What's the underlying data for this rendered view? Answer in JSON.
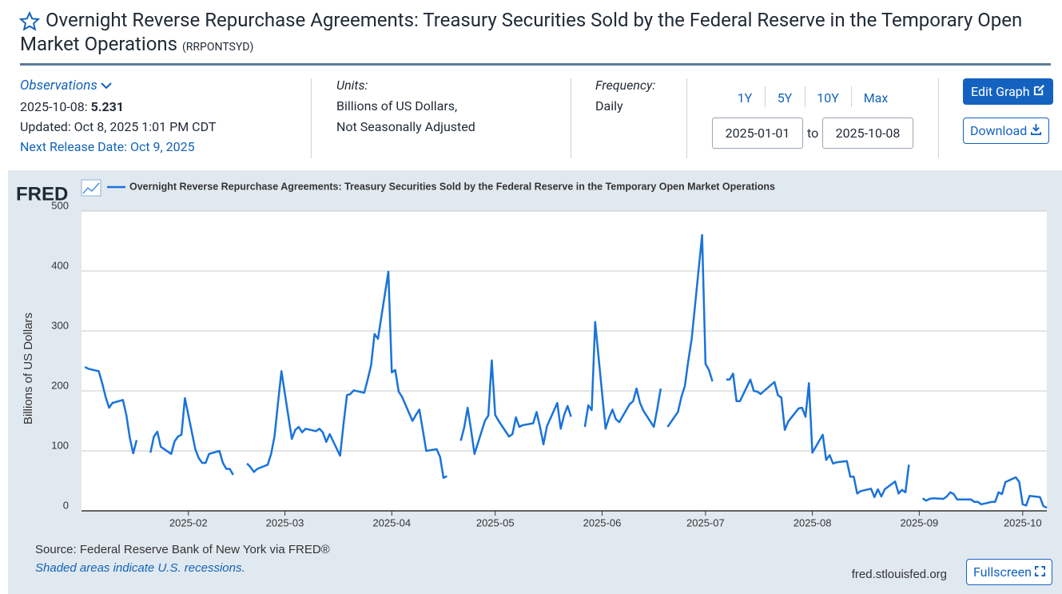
{
  "header": {
    "title": "Overnight Reverse Repurchase Agreements: Treasury Securities Sold by the Federal Reserve in the Temporary Open Market Operations",
    "series_id": "(RRPONTSYD)"
  },
  "observations": {
    "label": "Observations",
    "date": "2025-10-08:",
    "value": "5.231",
    "updated": "Updated: Oct 8, 2025 1:01 PM CDT",
    "next_release": "Next Release Date: Oct 9, 2025"
  },
  "units": {
    "label": "Units:",
    "lines": [
      "Billions of US Dollars,",
      "Not Seasonally Adjusted"
    ]
  },
  "frequency": {
    "label": "Frequency:",
    "value": "Daily"
  },
  "ranges": [
    "1Y",
    "5Y",
    "10Y",
    "Max"
  ],
  "date_range": {
    "start": "2025-01-01",
    "separator": "to",
    "end": "2025-10-08"
  },
  "buttons": {
    "edit": "Edit Graph",
    "download": "Download",
    "fullscreen": "Fullscreen"
  },
  "footer_url": "fred.stlouisfed.org",
  "chart_data": {
    "type": "line",
    "logo": "FRED",
    "ylabel": "Billions of US Dollars",
    "source": "Source: Federal Reserve Bank of New York via FRED®",
    "note": "Shaded areas indicate U.S. recessions.",
    "grid": true,
    "xlim": [
      "2025-01-01",
      "2025-10-08"
    ],
    "ylim": [
      0,
      500
    ],
    "yticks": [
      0,
      100,
      200,
      300,
      400,
      500
    ],
    "xticks": [
      {
        "value": "2025-02-01",
        "label": "2025-02"
      },
      {
        "value": "2025-03-01",
        "label": "2025-03"
      },
      {
        "value": "2025-04-01",
        "label": "2025-04"
      },
      {
        "value": "2025-05-01",
        "label": "2025-05"
      },
      {
        "value": "2025-06-01",
        "label": "2025-06"
      },
      {
        "value": "2025-07-01",
        "label": "2025-07"
      },
      {
        "value": "2025-08-01",
        "label": "2025-08"
      },
      {
        "value": "2025-09-01",
        "label": "2025-09"
      },
      {
        "value": "2025-10-01",
        "label": "2025-10"
      }
    ],
    "x": [
      "2025-01-02",
      "2025-01-03",
      "2025-01-06",
      "2025-01-07",
      "2025-01-08",
      "2025-01-09",
      "2025-01-10",
      "2025-01-13",
      "2025-01-14",
      "2025-01-15",
      "2025-01-16",
      "2025-01-17",
      "2025-01-20",
      "2025-01-21",
      "2025-01-22",
      "2025-01-23",
      "2025-01-24",
      "2025-01-27",
      "2025-01-28",
      "2025-01-29",
      "2025-01-30",
      "2025-01-31",
      "2025-02-03",
      "2025-02-04",
      "2025-02-05",
      "2025-02-06",
      "2025-02-07",
      "2025-02-10",
      "2025-02-11",
      "2025-02-12",
      "2025-02-13",
      "2025-02-14",
      "2025-02-17",
      "2025-02-18",
      "2025-02-19",
      "2025-02-20",
      "2025-02-21",
      "2025-02-24",
      "2025-02-25",
      "2025-02-26",
      "2025-02-27",
      "2025-02-28",
      "2025-03-03",
      "2025-03-04",
      "2025-03-05",
      "2025-03-06",
      "2025-03-07",
      "2025-03-10",
      "2025-03-11",
      "2025-03-12",
      "2025-03-13",
      "2025-03-14",
      "2025-03-17",
      "2025-03-18",
      "2025-03-19",
      "2025-03-20",
      "2025-03-21",
      "2025-03-24",
      "2025-03-25",
      "2025-03-26",
      "2025-03-27",
      "2025-03-28",
      "2025-03-31",
      "2025-04-01",
      "2025-04-02",
      "2025-04-03",
      "2025-04-04",
      "2025-04-07",
      "2025-04-08",
      "2025-04-09",
      "2025-04-10",
      "2025-04-11",
      "2025-04-14",
      "2025-04-15",
      "2025-04-16",
      "2025-04-17",
      "2025-04-18",
      "2025-04-21",
      "2025-04-22",
      "2025-04-23",
      "2025-04-24",
      "2025-04-25",
      "2025-04-28",
      "2025-04-29",
      "2025-04-30",
      "2025-05-01",
      "2025-05-02",
      "2025-05-05",
      "2025-05-06",
      "2025-05-07",
      "2025-05-08",
      "2025-05-09",
      "2025-05-12",
      "2025-05-13",
      "2025-05-14",
      "2025-05-15",
      "2025-05-16",
      "2025-05-19",
      "2025-05-20",
      "2025-05-21",
      "2025-05-22",
      "2025-05-23",
      "2025-05-26",
      "2025-05-27",
      "2025-05-28",
      "2025-05-29",
      "2025-05-30",
      "2025-06-02",
      "2025-06-03",
      "2025-06-04",
      "2025-06-05",
      "2025-06-06",
      "2025-06-09",
      "2025-06-10",
      "2025-06-11",
      "2025-06-12",
      "2025-06-13",
      "2025-06-16",
      "2025-06-17",
      "2025-06-18",
      "2025-06-19",
      "2025-06-20",
      "2025-06-23",
      "2025-06-24",
      "2025-06-25",
      "2025-06-26",
      "2025-06-27",
      "2025-06-30",
      "2025-07-01",
      "2025-07-02",
      "2025-07-03",
      "2025-07-04",
      "2025-07-07",
      "2025-07-08",
      "2025-07-09",
      "2025-07-10",
      "2025-07-11",
      "2025-07-14",
      "2025-07-15",
      "2025-07-16",
      "2025-07-17",
      "2025-07-18",
      "2025-07-21",
      "2025-07-22",
      "2025-07-23",
      "2025-07-24",
      "2025-07-25",
      "2025-07-28",
      "2025-07-29",
      "2025-07-30",
      "2025-07-31",
      "2025-08-01",
      "2025-08-04",
      "2025-08-05",
      "2025-08-06",
      "2025-08-07",
      "2025-08-08",
      "2025-08-11",
      "2025-08-12",
      "2025-08-13",
      "2025-08-14",
      "2025-08-15",
      "2025-08-18",
      "2025-08-19",
      "2025-08-20",
      "2025-08-21",
      "2025-08-22",
      "2025-08-25",
      "2025-08-26",
      "2025-08-27",
      "2025-08-28",
      "2025-08-29",
      "2025-09-01",
      "2025-09-02",
      "2025-09-03",
      "2025-09-04",
      "2025-09-05",
      "2025-09-08",
      "2025-09-09",
      "2025-09-10",
      "2025-09-11",
      "2025-09-12",
      "2025-09-15",
      "2025-09-16",
      "2025-09-17",
      "2025-09-18",
      "2025-09-19",
      "2025-09-22",
      "2025-09-23",
      "2025-09-24",
      "2025-09-25",
      "2025-09-26",
      "2025-09-29",
      "2025-09-30",
      "2025-10-01",
      "2025-10-02",
      "2025-10-03",
      "2025-10-06",
      "2025-10-07",
      "2025-10-08"
    ],
    "series": [
      {
        "name": "Overnight Reverse Repurchase Agreements: Treasury Securities Sold by the Federal Reserve in the Temporary Open Market Operations",
        "color": "#1a73d9",
        "values": [
          240,
          237,
          233,
          213,
          190,
          172,
          180,
          185,
          160,
          122,
          96,
          118,
          null,
          97,
          124,
          132,
          107,
          95,
          116,
          124,
          127,
          188,
          103,
          88,
          80,
          80,
          95,
          100,
          80,
          70,
          70,
          60,
          null,
          79,
          73,
          65,
          70,
          77,
          95,
          125,
          180,
          233,
          120,
          135,
          140,
          131,
          137,
          133,
          137,
          131,
          115,
          128,
          92,
          145,
          193,
          195,
          201,
          197,
          219,
          243,
          295,
          287,
          399,
          231,
          235,
          199,
          190,
          150,
          160,
          169,
          135,
          100,
          103,
          90,
          55,
          58,
          null,
          117,
          139,
          172,
          135,
          95,
          150,
          159,
          251,
          160,
          150,
          124,
          128,
          156,
          140,
          143,
          146,
          165,
          140,
          111,
          141,
          180,
          137,
          160,
          175,
          157,
          null,
          140,
          176,
          168,
          315,
          137,
          155,
          169,
          153,
          148,
          178,
          183,
          204,
          180,
          167,
          140,
          170,
          204,
          null,
          140,
          165,
          190,
          208,
          250,
          287,
          460,
          245,
          235,
          216,
          null,
          219,
          219,
          229,
          183,
          183,
          219,
          200,
          199,
          195,
          200,
          215,
          193,
          189,
          135,
          149,
          171,
          172,
          157,
          213,
          97,
          127,
          85,
          93,
          79,
          81,
          83,
          57,
          57,
          29,
          33,
          37,
          23,
          36,
          24,
          36,
          49,
          29,
          35,
          31,
          77,
          null,
          21,
          17,
          20,
          21,
          20,
          24,
          31,
          28,
          19,
          19,
          19,
          15,
          15,
          11,
          15,
          15,
          31,
          28,
          48,
          56,
          48,
          11,
          9,
          25,
          23,
          8,
          5.231
        ]
      }
    ]
  }
}
